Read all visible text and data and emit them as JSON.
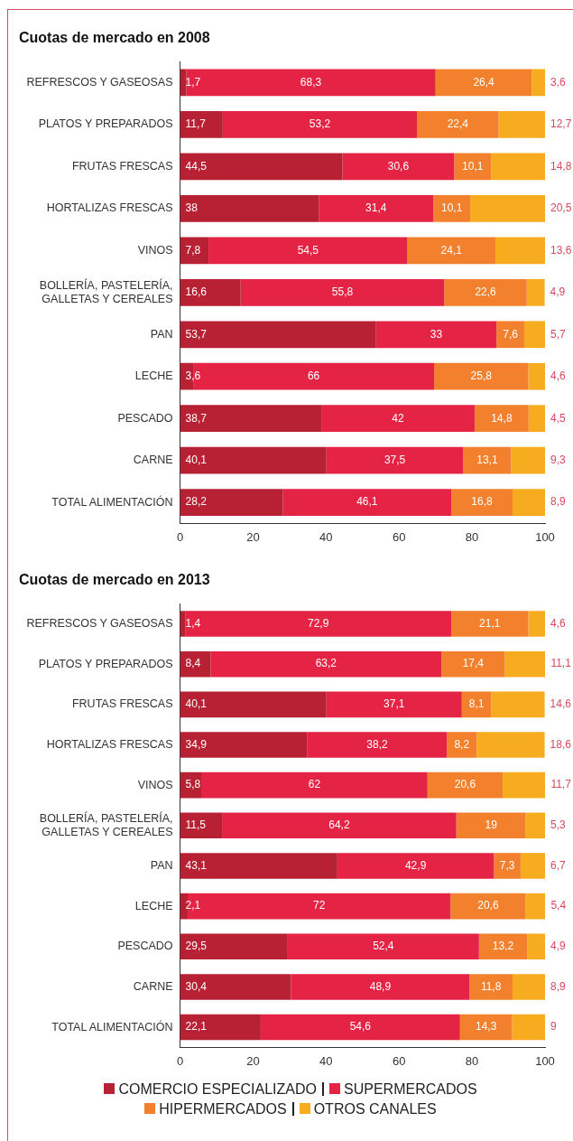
{
  "chart_data": [
    {
      "type": "bar",
      "orientation": "horizontal",
      "stacked": true,
      "title": "Cuotas de mercado en 2008",
      "categories": [
        "REFRESCOS Y GASEOSAS",
        "PLATOS Y PREPARADOS",
        "FRUTAS FRESCAS",
        "HORTALIZAS FRESCAS",
        "VINOS",
        "BOLLERÍA, PASTELERÍA, GALLETAS Y CEREALES",
        "PAN",
        "LECHE",
        "PESCADO",
        "CARNE",
        "TOTAL ALIMENTACIÓN"
      ],
      "xlim": [
        0,
        100
      ],
      "xticks": [
        0,
        20,
        40,
        60,
        80,
        100
      ],
      "grid": false,
      "legend": false,
      "series": [
        {
          "color": "#b82033",
          "values": [
            1.7,
            11.7,
            44.5,
            38,
            7.8,
            16.6,
            53.7,
            3.6,
            38.7,
            40.1,
            28.2
          ],
          "value_labels": [
            "1,7",
            "11,7",
            "44,5",
            "38",
            "7,8",
            "16,6",
            "53,7",
            "3,6",
            "38,7",
            "40,1",
            "28,2"
          ]
        },
        {
          "color": "#e42345",
          "values": [
            68.3,
            53.2,
            30.6,
            31.4,
            54.5,
            55.8,
            33,
            66,
            42,
            37.5,
            46.1
          ],
          "value_labels": [
            "68,3",
            "53,2",
            "30,6",
            "31,4",
            "54,5",
            "55,8",
            "33",
            "66",
            "42",
            "37,5",
            "46,1"
          ]
        },
        {
          "color": "#f2802d",
          "values": [
            26.4,
            22.4,
            10.1,
            10.1,
            24.1,
            22.6,
            7.6,
            25.8,
            14.8,
            13.1,
            16.8
          ],
          "value_labels": [
            "26,4",
            "22,4",
            "10,1",
            "10,1",
            "24,1",
            "22,6",
            "7,6",
            "25,8",
            "14,8",
            "13,1",
            "16,8"
          ]
        },
        {
          "color": "#f7ab1f",
          "values": [
            3.6,
            12.7,
            14.8,
            20.5,
            13.6,
            4.9,
            5.7,
            4.6,
            4.5,
            9.3,
            8.9
          ],
          "value_labels": [
            "3,6",
            "12,7",
            "14,8",
            "20,5",
            "13,6",
            "4,9",
            "5,7",
            "4,6",
            "4,5",
            "9,3",
            "8,9"
          ]
        }
      ]
    },
    {
      "type": "bar",
      "orientation": "horizontal",
      "stacked": true,
      "title": "Cuotas de mercado en 2013",
      "categories": [
        "REFRESCOS Y GASEOSAS",
        "PLATOS Y PREPARADOS",
        "FRUTAS FRESCAS",
        "HORTALIZAS FRESCAS",
        "VINOS",
        "BOLLERÍA, PASTELERÍA, GALLETAS Y CEREALES",
        "PAN",
        "LECHE",
        "PESCADO",
        "CARNE",
        "TOTAL ALIMENTACIÓN"
      ],
      "xlim": [
        0,
        100
      ],
      "xticks": [
        0,
        20,
        40,
        60,
        80,
        100
      ],
      "grid": false,
      "legend": "bottom",
      "series": [
        {
          "name": "COMERCIO ESPECIALIZADO",
          "color": "#b82033",
          "values": [
            1.4,
            8.4,
            40.1,
            34.9,
            5.8,
            11.5,
            43.1,
            2.1,
            29.5,
            30.4,
            22.1
          ],
          "value_labels": [
            "1,4",
            "8,4",
            "40,1",
            "34,9",
            "5,8",
            "11,5",
            "43,1",
            "2,1",
            "29,5",
            "30,4",
            "22,1"
          ]
        },
        {
          "name": "SUPERMERCADOS",
          "color": "#e42345",
          "values": [
            72.9,
            63.2,
            37.1,
            38.2,
            62,
            64.2,
            42.9,
            72,
            52.4,
            48.9,
            54.6
          ],
          "value_labels": [
            "72,9",
            "63,2",
            "37,1",
            "38,2",
            "62",
            "64,2",
            "42,9",
            "72",
            "52,4",
            "48,9",
            "54,6"
          ]
        },
        {
          "name": "HIPERMERCADOS",
          "color": "#f2802d",
          "values": [
            21.1,
            17.4,
            8.1,
            8.2,
            20.6,
            19,
            7.3,
            20.6,
            13.2,
            11.8,
            14.3
          ],
          "value_labels": [
            "21,1",
            "17,4",
            "8,1",
            "8,2",
            "20,6",
            "19",
            "7,3",
            "20,6",
            "13,2",
            "11,8",
            "14,3"
          ]
        },
        {
          "name": "OTROS CANALES",
          "color": "#f7ab1f",
          "values": [
            4.6,
            11.1,
            14.6,
            18.6,
            11.7,
            5.3,
            6.7,
            5.4,
            4.9,
            8.9,
            9
          ],
          "value_labels": [
            "4,6",
            "11,1",
            "14,6",
            "18,6",
            "11,7",
            "5,3",
            "6,7",
            "5,4",
            "4,9",
            "8,9",
            "9"
          ]
        }
      ]
    }
  ]
}
